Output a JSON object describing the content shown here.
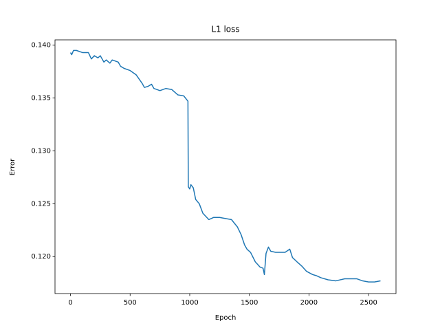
{
  "chart_data": {
    "type": "line",
    "title": "L1 loss",
    "x_label": "Epoch",
    "y_label": "Error",
    "color": "#1f77b4",
    "x": [
      0,
      10,
      25,
      50,
      100,
      150,
      175,
      200,
      230,
      250,
      280,
      300,
      330,
      350,
      400,
      420,
      450,
      500,
      550,
      600,
      620,
      650,
      680,
      700,
      750,
      800,
      850,
      900,
      950,
      985,
      988,
      1000,
      1010,
      1030,
      1050,
      1080,
      1110,
      1160,
      1200,
      1250,
      1300,
      1350,
      1400,
      1430,
      1460,
      1480,
      1510,
      1550,
      1590,
      1615,
      1626,
      1640,
      1660,
      1680,
      1720,
      1760,
      1800,
      1839,
      1862,
      1900,
      1940,
      1980,
      2030,
      2060,
      2100,
      2160,
      2224,
      2300,
      2400,
      2450,
      2500,
      2550,
      2600
    ],
    "values": [
      0.1393,
      0.1391,
      0.1395,
      0.1395,
      0.1393,
      0.1393,
      0.1387,
      0.139,
      0.1388,
      0.139,
      0.1384,
      0.1386,
      0.1383,
      0.1386,
      0.1384,
      0.138,
      0.1378,
      0.1376,
      0.1372,
      0.1364,
      0.136,
      0.1361,
      0.1363,
      0.1359,
      0.1357,
      0.1359,
      0.1358,
      0.1353,
      0.1352,
      0.1347,
      0.1266,
      0.1264,
      0.1268,
      0.1265,
      0.1254,
      0.125,
      0.1241,
      0.1235,
      0.1237,
      0.1237,
      0.1236,
      0.1235,
      0.1228,
      0.1221,
      0.1211,
      0.1207,
      0.1204,
      0.1195,
      0.119,
      0.1189,
      0.1183,
      0.1203,
      0.1209,
      0.1205,
      0.1204,
      0.1204,
      0.1204,
      0.1207,
      0.1199,
      0.1195,
      0.1191,
      0.1186,
      0.1183,
      0.1182,
      0.118,
      0.1178,
      0.1177,
      0.1179,
      0.1179,
      0.1177,
      0.1176,
      0.1176,
      0.1177
    ],
    "xlim": [
      -130,
      2730
    ],
    "ylim": [
      0.1165,
      0.1405
    ],
    "xticks": [
      0,
      500,
      1000,
      1500,
      2000,
      2500
    ],
    "yticks": [
      {
        "value": 0.12,
        "label": "0.120"
      },
      {
        "value": 0.125,
        "label": "0.125"
      },
      {
        "value": 0.13,
        "label": "0.130"
      },
      {
        "value": 0.135,
        "label": "0.135"
      },
      {
        "value": 0.14,
        "label": "0.140"
      }
    ]
  }
}
